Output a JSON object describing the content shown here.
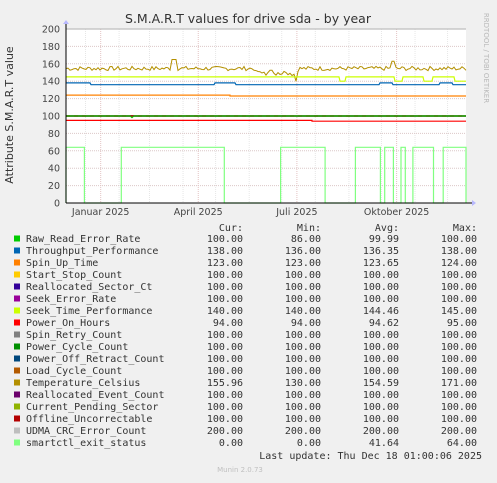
{
  "chart_data": {
    "type": "line",
    "title": "S.M.A.R.T values for drive sda - by year",
    "ylabel": "Attribute S.M.A.R.T value",
    "watermark": "RRDTOOL / TOBI OETIKER",
    "ylim": [
      0,
      200
    ],
    "yticks": [
      0,
      20,
      40,
      60,
      80,
      100,
      120,
      140,
      160,
      180,
      200
    ],
    "grid": true,
    "x_range": [
      "2024-12-14",
      "2025-12-18"
    ],
    "xticks": [
      {
        "label": "Januar 2025",
        "date": "2025-01-15"
      },
      {
        "label": "April 2025",
        "date": "2025-04-15"
      },
      {
        "label": "Juli 2025",
        "date": "2025-07-15"
      },
      {
        "label": "Oktober 2025",
        "date": "2025-10-15"
      }
    ],
    "legend_headers": [
      "Cur:",
      "Min:",
      "Avg:",
      "Max:"
    ],
    "series": [
      {
        "name": "Raw_Read_Error_Rate",
        "color": "#00cc00",
        "cur": "100.00",
        "min": "86.00",
        "avg": "99.99",
        "max": "100.00"
      },
      {
        "name": "Throughput_Performance",
        "color": "#0066b3",
        "cur": "138.00",
        "min": "136.00",
        "avg": "136.35",
        "max": "138.00"
      },
      {
        "name": "Spin_Up_Time",
        "color": "#ff8000",
        "cur": "123.00",
        "min": "123.00",
        "avg": "123.65",
        "max": "124.00"
      },
      {
        "name": "Start_Stop_Count",
        "color": "#ffcc00",
        "cur": "100.00",
        "min": "100.00",
        "avg": "100.00",
        "max": "100.00"
      },
      {
        "name": "Reallocated_Sector_Ct",
        "color": "#330099",
        "cur": "100.00",
        "min": "100.00",
        "avg": "100.00",
        "max": "100.00"
      },
      {
        "name": "Seek_Error_Rate",
        "color": "#990099",
        "cur": "100.00",
        "min": "100.00",
        "avg": "100.00",
        "max": "100.00"
      },
      {
        "name": "Seek_Time_Performance",
        "color": "#ccff00",
        "cur": "140.00",
        "min": "140.00",
        "avg": "144.46",
        "max": "145.00"
      },
      {
        "name": "Power_On_Hours",
        "color": "#ff0000",
        "cur": "94.00",
        "min": "94.00",
        "avg": "94.62",
        "max": "95.00"
      },
      {
        "name": "Spin_Retry_Count",
        "color": "#808080",
        "cur": "100.00",
        "min": "100.00",
        "avg": "100.00",
        "max": "100.00"
      },
      {
        "name": "Power_Cycle_Count",
        "color": "#008f00",
        "cur": "100.00",
        "min": "100.00",
        "avg": "100.00",
        "max": "100.00"
      },
      {
        "name": "Power_Off_Retract_Count",
        "color": "#00487d",
        "cur": "100.00",
        "min": "100.00",
        "avg": "100.00",
        "max": "100.00"
      },
      {
        "name": "Load_Cycle_Count",
        "color": "#b35a00",
        "cur": "100.00",
        "min": "100.00",
        "avg": "100.00",
        "max": "100.00"
      },
      {
        "name": "Temperature_Celsius",
        "color": "#b38f00",
        "cur": "155.96",
        "min": "130.00",
        "avg": "154.59",
        "max": "171.00"
      },
      {
        "name": "Reallocated_Event_Count",
        "color": "#6b006b",
        "cur": "100.00",
        "min": "100.00",
        "avg": "100.00",
        "max": "100.00"
      },
      {
        "name": "Current_Pending_Sector",
        "color": "#8fb300",
        "cur": "100.00",
        "min": "100.00",
        "avg": "100.00",
        "max": "100.00"
      },
      {
        "name": "Offline_Uncorrectable",
        "color": "#b30000",
        "cur": "100.00",
        "min": "100.00",
        "avg": "100.00",
        "max": "100.00"
      },
      {
        "name": "UDMA_CRC_Error_Count",
        "color": "#bebebe",
        "cur": "200.00",
        "min": "200.00",
        "avg": "200.00",
        "max": "200.00"
      },
      {
        "name": "smartctl_exit_status",
        "color": "#80ff80",
        "cur": "0.00",
        "min": "0.00",
        "avg": "41.64",
        "max": "64.00"
      }
    ],
    "exit_status_segments": [
      {
        "start": "2024-12-14",
        "end": "2024-12-31",
        "value": 64
      },
      {
        "start": "2025-02-03",
        "end": "2025-05-09",
        "value": 64
      },
      {
        "start": "2025-06-30",
        "end": "2025-08-10",
        "value": 64
      },
      {
        "start": "2025-09-07",
        "end": "2025-09-30",
        "value": 64
      },
      {
        "start": "2025-10-04",
        "end": "2025-10-12",
        "value": 64
      },
      {
        "start": "2025-10-19",
        "end": "2025-10-23",
        "value": 64
      },
      {
        "start": "2025-10-30",
        "end": "2025-11-18",
        "value": 64
      },
      {
        "start": "2025-11-27",
        "end": "2025-12-18",
        "value": 64
      }
    ]
  },
  "footer": {
    "last_update": "Last update: Thu Dec 18 01:00:06 2025",
    "version": "Munin 2.0.73"
  }
}
